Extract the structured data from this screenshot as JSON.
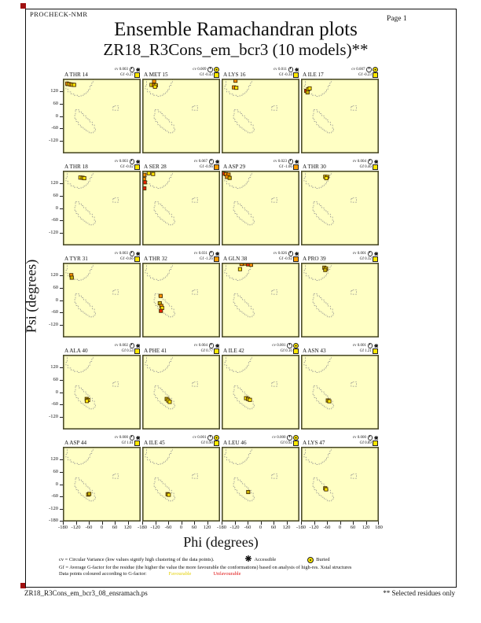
{
  "page": {
    "app_name": "PROCHECK-NMR",
    "page_label": "Page  1",
    "title_line1": "Ensemble Ramachandran plots",
    "title_line2": "ZR18_R3Cons_em_bcr3 (10 models)**",
    "footer_left": "ZR18_R3Cons_em_bcr3_08_ensramach.ps",
    "footer_right": "** Selected residues only"
  },
  "axes": {
    "xlabel": "Phi (degrees)",
    "ylabel": "Psi (degrees)",
    "x_tick_labels": [
      "-180",
      "-120",
      "-60",
      "0",
      "60",
      "120"
    ],
    "x_tick_values": [
      -180,
      -120,
      -60,
      0,
      60,
      120
    ],
    "x_end_label": "180",
    "y_tick_labels": [
      "120",
      "60",
      "0",
      "-60",
      "-120"
    ],
    "y_tick_values": [
      120,
      60,
      0,
      -60,
      -120
    ],
    "y_end_label": "-180"
  },
  "legend": {
    "line1": "cv = Circular Variance (low values signify high clustering of the data points).",
    "accessible_label": "Accessible",
    "buried_label": "Buried",
    "line2": "Gf = Average G-factor for the residue (the higher the value the more favourable the conformations)  based on analysis of high-res. Xstal structures",
    "line3": "Data points coloured according to G-factor:",
    "favourable_label": "Favourable",
    "unfavourable_label": "Unfavourable"
  },
  "colors": {
    "plot_bg": "#ffffc4",
    "plot_frame": "#4d4d2b",
    "region_dash": "#8f8f8f",
    "point_stroke": "#4a3000",
    "favourable_point": "#ffe800",
    "mid_point": "#ff9100",
    "unfavourable_point": "#ee2200",
    "dark_point": "#c9b300",
    "gf_yellow": "#ffe800",
    "gf_orange": "#ff9d00",
    "reg_mark": "#a01010"
  },
  "chart_data": {
    "type": "scatter",
    "subtype": "ramachandran-grid",
    "grid": {
      "rows": 5,
      "cols": 4
    },
    "x_range": [
      -180,
      180
    ],
    "y_range": [
      -180,
      180
    ],
    "cv_prefix": "cv",
    "gf_prefix": "Gf",
    "plots": [
      {
        "residue": "A THR 14",
        "cv": "0.003",
        "gf": "-0.27",
        "access": "accessible",
        "gf_color": "yellow",
        "points": [
          {
            "phi": -160,
            "psi": 156,
            "c": "o"
          },
          {
            "phi": -152,
            "psi": 154,
            "c": "y"
          },
          {
            "phi": -144,
            "psi": 152,
            "c": "o"
          },
          {
            "phi": -136,
            "psi": 151,
            "c": "y"
          },
          {
            "phi": -128,
            "psi": 150,
            "c": "y"
          }
        ]
      },
      {
        "residue": "A MET 15",
        "cv": "0.009",
        "gf": "-0.43",
        "access": "buried",
        "gf_color": "yellow",
        "points": [
          {
            "phi": -125,
            "psi": 167,
            "c": "o"
          },
          {
            "phi": -137,
            "psi": 150,
            "c": "y"
          },
          {
            "phi": -127,
            "psi": 149,
            "c": "o"
          },
          {
            "phi": -117,
            "psi": 148,
            "c": "y"
          },
          {
            "phi": -121,
            "psi": 141,
            "c": "y"
          }
        ]
      },
      {
        "residue": "A LYS 16",
        "cv": "0.011",
        "gf": "-0.34",
        "access": "accessible",
        "gf_color": "yellow",
        "points": [
          {
            "phi": -116,
            "psi": 170,
            "c": "o"
          },
          {
            "phi": -123,
            "psi": 138,
            "c": "o"
          },
          {
            "phi": -112,
            "psi": 136,
            "c": "y"
          }
        ]
      },
      {
        "residue": "A ILE 17",
        "cv": "0.007",
        "gf": "-0.23",
        "access": "buried",
        "gf_color": "yellow",
        "points": [
          {
            "phi": -156,
            "psi": 121,
            "c": "r"
          },
          {
            "phi": -147,
            "psi": 129,
            "c": "y"
          },
          {
            "phi": -140,
            "psi": 133,
            "c": "y"
          },
          {
            "phi": -150,
            "psi": 114,
            "c": "d"
          }
        ]
      },
      {
        "residue": "A THR 18",
        "cv": "0.003",
        "gf": "-0.02",
        "access": "accessible",
        "gf_color": "yellow",
        "points": [
          {
            "phi": -99,
            "psi": 147,
            "c": "y"
          },
          {
            "phi": -89,
            "psi": 146,
            "c": "d"
          },
          {
            "phi": -81,
            "psi": 144,
            "c": "y"
          }
        ]
      },
      {
        "residue": "A SER 28",
        "cv": "0.067",
        "gf": "-0.96",
        "access": "accessible",
        "gf_color": "orange",
        "points": [
          {
            "phi": -170,
            "psi": 160,
            "c": "o"
          },
          {
            "phi": -150,
            "psi": 168,
            "c": "y"
          },
          {
            "phi": -130,
            "psi": 164,
            "c": "y"
          },
          {
            "phi": -172,
            "psi": 140,
            "c": "o"
          },
          {
            "phi": -168,
            "psi": 124,
            "c": "r"
          },
          {
            "phi": -170,
            "psi": 95,
            "c": "r"
          }
        ]
      },
      {
        "residue": "A ASP 29",
        "cv": "0.023",
        "gf": "-1.06",
        "access": "accessible",
        "gf_color": "orange",
        "points": [
          {
            "phi": -172,
            "psi": 166,
            "c": "r"
          },
          {
            "phi": -160,
            "psi": 163,
            "c": "o"
          },
          {
            "phi": -148,
            "psi": 161,
            "c": "o"
          },
          {
            "phi": -155,
            "psi": 150,
            "c": "o"
          },
          {
            "phi": -143,
            "psi": 145,
            "c": "d"
          }
        ]
      },
      {
        "residue": "A THR 30",
        "cv": "0.004",
        "gf": "0.46",
        "access": "accessible",
        "gf_color": "yellow",
        "points": [
          {
            "phi": -68,
            "psi": 151,
            "c": "y"
          },
          {
            "phi": -59,
            "psi": 150,
            "c": "y"
          },
          {
            "phi": -63,
            "psi": 144,
            "c": "y"
          }
        ]
      },
      {
        "residue": "A TYR 31",
        "cv": "0.003",
        "gf": "-0.66",
        "access": "accessible",
        "gf_color": "yellow",
        "points": [
          {
            "phi": -141,
            "psi": 120,
            "c": "o"
          },
          {
            "phi": -139,
            "psi": 108,
            "c": "d"
          }
        ]
      },
      {
        "residue": "A THR 32",
        "cv": "0.031",
        "gf": "-1.26",
        "access": "accessible",
        "gf_color": "orange",
        "points": [
          {
            "phi": -95,
            "psi": 20,
            "c": "o"
          },
          {
            "phi": -99,
            "psi": -15,
            "c": "d"
          },
          {
            "phi": -92,
            "psi": -28,
            "c": "o"
          },
          {
            "phi": -88,
            "psi": -38,
            "c": "y"
          },
          {
            "phi": -94,
            "psi": -52,
            "c": "r"
          }
        ]
      },
      {
        "residue": "A GLN 38",
        "cv": "0.026",
        "gf": "-0.92",
        "access": "accessible",
        "gf_color": "orange",
        "points": [
          {
            "phi": -88,
            "psi": 174,
            "c": "o"
          },
          {
            "phi": -72,
            "psi": 176,
            "c": "o"
          },
          {
            "phi": -58,
            "psi": 172,
            "c": "r"
          },
          {
            "phi": -44,
            "psi": 170,
            "c": "o"
          },
          {
            "phi": -95,
            "psi": 149,
            "c": "y"
          }
        ]
      },
      {
        "residue": "A PRO 39",
        "cv": "0.001",
        "gf": "0.32",
        "access": "accessible",
        "gf_color": "yellow",
        "points": [
          {
            "phi": -72,
            "psi": 156,
            "c": "d"
          },
          {
            "phi": -64,
            "psi": 152,
            "c": "y"
          },
          {
            "phi": -68,
            "psi": 145,
            "c": "d"
          }
        ]
      },
      {
        "residue": "A ALA 40",
        "cv": "0.002",
        "gf": "0.54",
        "access": "accessible",
        "gf_color": "yellow",
        "points": [
          {
            "phi": -70,
            "psi": -33,
            "c": "d"
          },
          {
            "phi": -63,
            "psi": -38,
            "c": "y"
          },
          {
            "phi": -69,
            "psi": -43,
            "c": "y"
          }
        ]
      },
      {
        "residue": "A PHE 41",
        "cv": "0.004",
        "gf": "0.77",
        "access": "accessible",
        "gf_color": "yellow",
        "points": [
          {
            "phi": -67,
            "psi": -33,
            "c": "d"
          },
          {
            "phi": -60,
            "psi": -40,
            "c": "y"
          },
          {
            "phi": -53,
            "psi": -47,
            "c": "y"
          }
        ]
      },
      {
        "residue": "A ILE 42",
        "cv": "0.001",
        "gf": "0.16",
        "access": "buried",
        "gf_color": "yellow",
        "points": [
          {
            "phi": -67,
            "psi": -29,
            "c": "y"
          },
          {
            "phi": -58,
            "psi": -33,
            "c": "d"
          },
          {
            "phi": -49,
            "psi": -37,
            "c": "y"
          }
        ]
      },
      {
        "residue": "A ASN 43",
        "cv": "0.001",
        "gf": "1.21",
        "access": "accessible",
        "gf_color": "yellow",
        "points": [
          {
            "phi": -56,
            "psi": -40,
            "c": "d"
          },
          {
            "phi": -49,
            "psi": -44,
            "c": "y"
          }
        ]
      },
      {
        "residue": "A ASP 44",
        "cv": "0.000",
        "gf": "1.01",
        "access": "accessible",
        "gf_color": "yellow",
        "points": [
          {
            "phi": -63,
            "psi": -50,
            "c": "y"
          },
          {
            "phi": -58,
            "psi": -47,
            "c": "d"
          }
        ]
      },
      {
        "residue": "A ILE 45",
        "cv": "0.001",
        "gf": "0.90",
        "access": "buried",
        "gf_color": "yellow",
        "points": [
          {
            "phi": -63,
            "psi": -48,
            "c": "d"
          },
          {
            "phi": -57,
            "psi": -51,
            "c": "y"
          }
        ]
      },
      {
        "residue": "A LEU 46",
        "cv": "0.000",
        "gf": "0.92",
        "access": "buried",
        "gf_color": "yellow",
        "points": [
          {
            "phi": -57,
            "psi": -38,
            "c": "d"
          }
        ]
      },
      {
        "residue": "A LYS 47",
        "cv": "0.000",
        "gf": "0.89",
        "access": "accessible",
        "gf_color": "yellow",
        "points": [
          {
            "phi": -68,
            "psi": -20,
            "c": "d"
          },
          {
            "phi": -64,
            "psi": -25,
            "c": "y"
          }
        ]
      }
    ]
  }
}
